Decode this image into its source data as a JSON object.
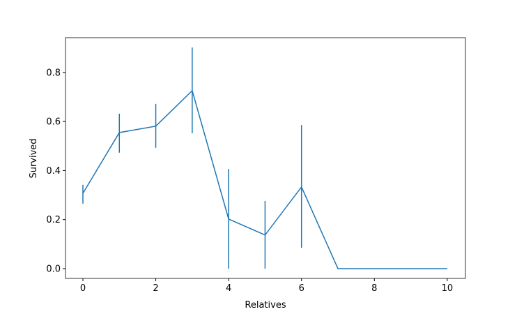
{
  "chart_data": {
    "type": "line",
    "xlabel": "Relatives",
    "ylabel": "Survived",
    "x": [
      0,
      1,
      2,
      3,
      4,
      5,
      6,
      7,
      10
    ],
    "series": [
      {
        "color": "#1f77b4",
        "values": [
          0.307,
          0.555,
          0.581,
          0.726,
          0.202,
          0.137,
          0.333,
          0,
          0
        ],
        "lower": [
          0.265,
          0.473,
          0.493,
          0.552,
          0,
          0,
          0.085,
          null,
          null
        ],
        "upper": [
          0.342,
          0.632,
          0.672,
          0.902,
          0.407,
          0.276,
          0.586,
          null,
          null
        ]
      }
    ],
    "xlim": [
      -0.478,
      10.5
    ],
    "ylim": [
      -0.04,
      0.942
    ],
    "xticks": [
      0,
      2,
      4,
      6,
      8,
      10
    ],
    "yticks": [
      {
        "value": 0,
        "label": "0.0"
      },
      0.2,
      0.4,
      0.6,
      0.8
    ]
  }
}
